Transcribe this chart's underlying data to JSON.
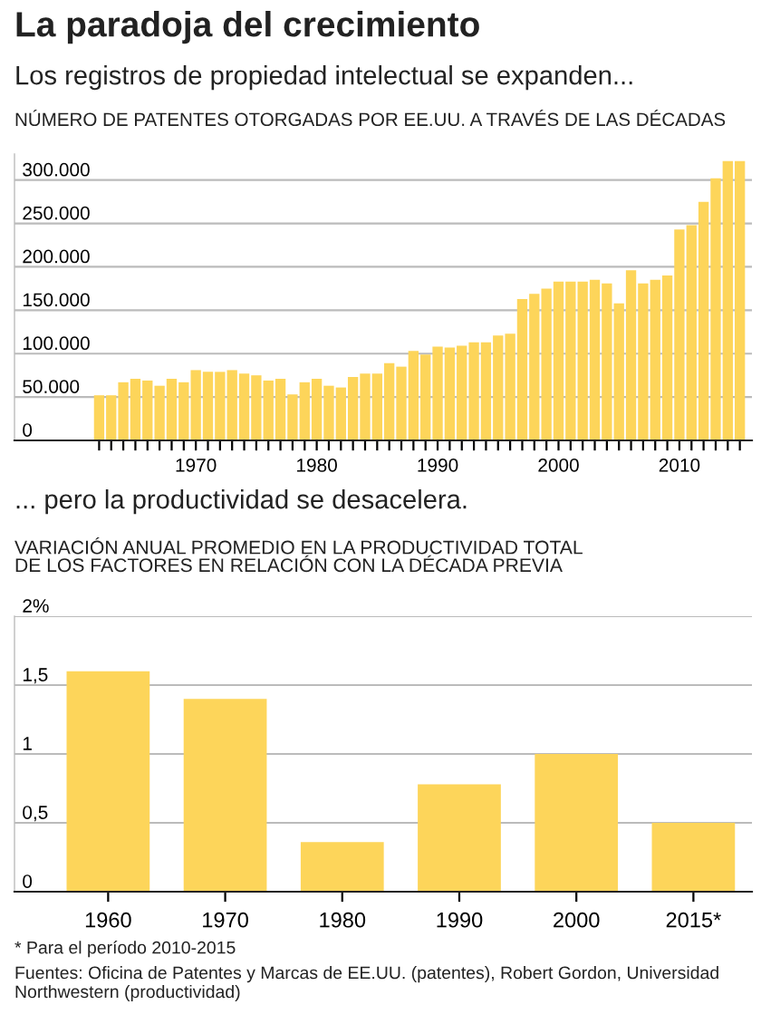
{
  "chart_data": [
    {
      "type": "bar",
      "title": "La paradoja del crecimiento",
      "subtitle": "Los registros de propiedad intelectual se expanden...",
      "annotations": [
        "NÚMERO DE PATENTES OTORGADAS POR EE.UU. A TRAVÉS DE LAS DÉCADAS"
      ],
      "x": [
        1962,
        1963,
        1964,
        1965,
        1966,
        1967,
        1968,
        1969,
        1970,
        1971,
        1972,
        1973,
        1974,
        1975,
        1976,
        1977,
        1978,
        1979,
        1980,
        1981,
        1982,
        1983,
        1984,
        1985,
        1986,
        1987,
        1988,
        1989,
        1990,
        1991,
        1992,
        1993,
        1994,
        1995,
        1996,
        1997,
        1998,
        1999,
        2000,
        2001,
        2002,
        2003,
        2004,
        2005,
        2006,
        2007,
        2008,
        2009,
        2010,
        2011,
        2012,
        2013,
        2014,
        2015
      ],
      "values": [
        52000,
        52000,
        67000,
        71000,
        69000,
        63000,
        71000,
        67000,
        81000,
        79000,
        79000,
        81000,
        77000,
        75000,
        69000,
        71000,
        53000,
        67000,
        71000,
        63000,
        61000,
        73000,
        77000,
        77000,
        89000,
        85000,
        103000,
        99000,
        108000,
        107000,
        109000,
        113000,
        113000,
        121000,
        123000,
        163000,
        169000,
        175000,
        183000,
        183000,
        183000,
        185000,
        181000,
        158000,
        196000,
        181000,
        185000,
        190000,
        243000,
        248000,
        275000,
        302000,
        322000,
        322000
      ],
      "color": "#fdd55a",
      "xlim": [
        1955,
        2016
      ],
      "ylim": [
        0,
        330000
      ],
      "xticks": [
        {
          "value": 1962,
          "label": null
        },
        {
          "value": 1963,
          "label": null
        },
        {
          "value": 1964,
          "label": null
        },
        {
          "value": 1965,
          "label": null
        },
        {
          "value": 1966,
          "label": null
        },
        {
          "value": 1967,
          "label": null
        },
        {
          "value": 1968,
          "label": null
        },
        {
          "value": 1969,
          "label": null
        },
        1970,
        {
          "value": 1971,
          "label": null
        },
        {
          "value": 1972,
          "label": null
        },
        {
          "value": 1973,
          "label": null
        },
        {
          "value": 1974,
          "label": null
        },
        {
          "value": 1975,
          "label": null
        },
        {
          "value": 1976,
          "label": null
        },
        {
          "value": 1977,
          "label": null
        },
        {
          "value": 1978,
          "label": null
        },
        {
          "value": 1979,
          "label": null
        },
        1980,
        {
          "value": 1981,
          "label": null
        },
        {
          "value": 1982,
          "label": null
        },
        {
          "value": 1983,
          "label": null
        },
        {
          "value": 1984,
          "label": null
        },
        {
          "value": 1985,
          "label": null
        },
        {
          "value": 1986,
          "label": null
        },
        {
          "value": 1987,
          "label": null
        },
        {
          "value": 1988,
          "label": null
        },
        {
          "value": 1989,
          "label": null
        },
        1990,
        {
          "value": 1991,
          "label": null
        },
        {
          "value": 1992,
          "label": null
        },
        {
          "value": 1993,
          "label": null
        },
        {
          "value": 1994,
          "label": null
        },
        {
          "value": 1995,
          "label": null
        },
        {
          "value": 1996,
          "label": null
        },
        {
          "value": 1997,
          "label": null
        },
        {
          "value": 1998,
          "label": null
        },
        {
          "value": 1999,
          "label": null
        },
        2000,
        {
          "value": 2001,
          "label": null
        },
        {
          "value": 2002,
          "label": null
        },
        {
          "value": 2003,
          "label": null
        },
        {
          "value": 2004,
          "label": null
        },
        {
          "value": 2005,
          "label": null
        },
        {
          "value": 2006,
          "label": null
        },
        {
          "value": 2007,
          "label": null
        },
        {
          "value": 2008,
          "label": null
        },
        {
          "value": 2009,
          "label": null
        },
        2010,
        {
          "value": 2011,
          "label": null
        },
        {
          "value": 2012,
          "label": null
        },
        {
          "value": 2013,
          "label": null
        },
        {
          "value": 2014,
          "label": null
        },
        {
          "value": 2015,
          "label": null
        }
      ],
      "yticks": [
        0,
        {
          "value": 50000,
          "label": "50.000"
        },
        {
          "value": 100000,
          "label": "100.000"
        },
        {
          "value": 150000,
          "label": "150.000"
        },
        {
          "value": 200000,
          "label": "200.000"
        },
        {
          "value": 250000,
          "label": "250.000"
        },
        {
          "value": 300000,
          "label": "300.000"
        }
      ],
      "grid": "y"
    },
    {
      "type": "bar",
      "title": "... pero la productividad se desacelera.",
      "subtitle": "VARIACIÓN ANUAL PROMEDIO EN LA PRODUCTIVIDAD TOTAL\nDE LOS FACTORES EN RELACIÓN CON LA DÉCADA PREVIA",
      "categories": [
        "1960",
        "1970",
        "1980",
        "1990",
        "2000",
        "2015*"
      ],
      "values": [
        1.6,
        1.4,
        0.36,
        0.78,
        1.0,
        0.5
      ],
      "color": "#fdd55a",
      "ylim": [
        0,
        2
      ],
      "yticks": [
        0,
        {
          "value": 0.5,
          "label": "0,5"
        },
        1,
        {
          "value": 1.5,
          "label": "1,5"
        },
        {
          "value": 2,
          "label": "2%"
        }
      ],
      "grid": "y",
      "annotations": [
        "* Para el período 2010-2015",
        "Fuentes: Oficina de Patentes y Marcas de EE.UU. (patentes), Robert Gordon, Universidad Northwestern (productividad)"
      ]
    }
  ]
}
